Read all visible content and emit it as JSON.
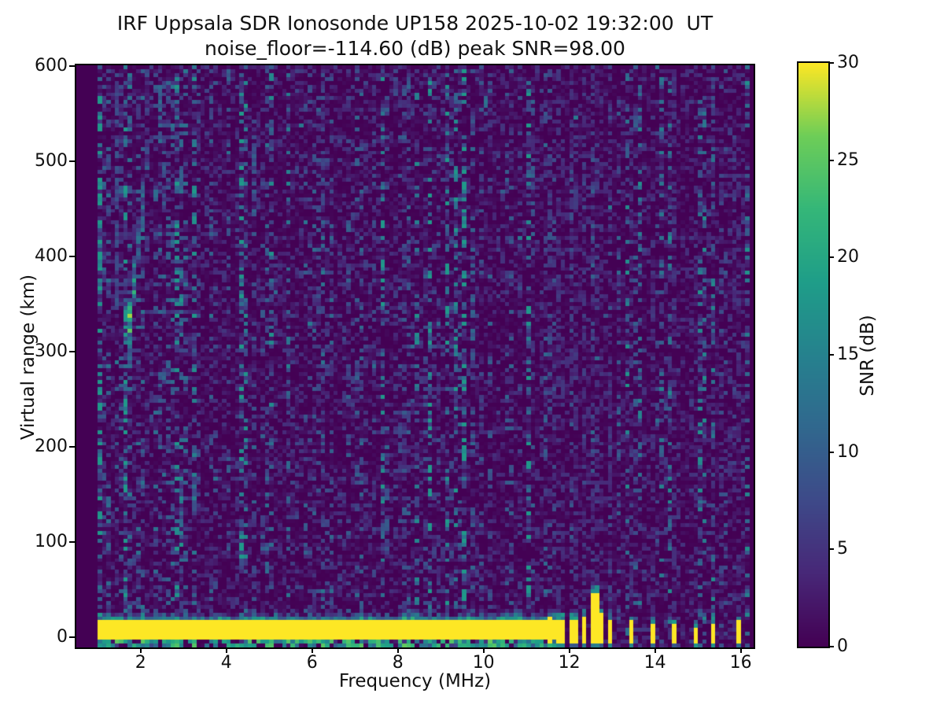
{
  "chart_data": {
    "type": "heatmap",
    "title": "IRF Uppsala SDR Ionosonde UP158 2025-10-02 19:32:00  UT",
    "subtitle": "noise_floor=-114.60 (dB) peak SNR=98.00",
    "xlabel": "Frequency (MHz)",
    "ylabel": "Virtual range (km)",
    "colorbar_label": "SNR (dB)",
    "noise_floor_db": -114.6,
    "peak_snr_db": 98.0,
    "xlim": [
      0.5,
      16.3
    ],
    "ylim": [
      -11,
      601
    ],
    "clim": [
      0,
      30
    ],
    "x_ticks": [
      2,
      4,
      6,
      8,
      10,
      12,
      14,
      16
    ],
    "y_ticks": [
      0,
      100,
      200,
      300,
      400,
      500,
      600
    ],
    "colorbar_ticks": [
      0,
      5,
      10,
      15,
      20,
      25,
      30
    ],
    "colormap": {
      "name": "viridis",
      "stops": [
        [
          0.0,
          "#440154"
        ],
        [
          0.125,
          "#482878"
        ],
        [
          0.25,
          "#3e4a89"
        ],
        [
          0.375,
          "#31688e"
        ],
        [
          0.5,
          "#26828e"
        ],
        [
          0.625,
          "#1f9e89"
        ],
        [
          0.75,
          "#35b779"
        ],
        [
          0.875,
          "#6ece58"
        ],
        [
          1.0,
          "#fde725"
        ]
      ]
    },
    "data_extent": {
      "freq_mhz": [
        1.0,
        16.2
      ],
      "range_km": [
        -11,
        601
      ]
    },
    "grid": {
      "n_freq_bins": 152,
      "n_range_bins": 150,
      "seed": 7
    },
    "features": {
      "background_noise_db": [
        0,
        4
      ],
      "ground_echo_band": {
        "freq_mhz": [
          0.97,
          11.62
        ],
        "core_range_km": [
          -4,
          17
        ],
        "core_snr_db": 30,
        "fringe_top_km": 24,
        "bumps": [
          {
            "f": 2.2,
            "top": 26
          },
          {
            "f": 3.2,
            "top": 27
          },
          {
            "f": 5.5,
            "top": 26
          },
          {
            "f": 6.35,
            "top": 27
          },
          {
            "f": 8.3,
            "top": 33
          },
          {
            "f": 9.6,
            "top": 27
          },
          {
            "f": 10.65,
            "top": 30
          },
          {
            "f": 11.3,
            "top": 27
          }
        ]
      },
      "interference_stripes": [
        {
          "f": 11.55,
          "top_km": 20
        },
        {
          "f": 11.71,
          "top_km": 18
        },
        {
          "f": 11.86,
          "top_km": 18
        },
        {
          "f": 12.01,
          "top_km": 18
        },
        {
          "f": 12.16,
          "top_km": 19
        },
        {
          "f": 12.31,
          "top_km": 21
        },
        {
          "f": 12.53,
          "top_km": 46,
          "width_bins": 2
        },
        {
          "f": 12.73,
          "top_km": 24
        },
        {
          "f": 12.92,
          "top_km": 18
        },
        {
          "f": 13.41,
          "top_km": 16
        },
        {
          "f": 13.91,
          "top_km": 14
        },
        {
          "f": 14.42,
          "top_km": 12
        },
        {
          "f": 14.9,
          "top_km": 10
        },
        {
          "f": 15.39,
          "top_km": 14
        },
        {
          "f": 15.92,
          "top_km": 16
        }
      ],
      "echo_trace": [
        {
          "f": 1.7,
          "km": 295,
          "snr": 14
        },
        {
          "f": 1.73,
          "km": 308,
          "snr": 20
        },
        {
          "f": 1.75,
          "km": 322,
          "snr": 26
        },
        {
          "f": 1.77,
          "km": 336,
          "snr": 27
        },
        {
          "f": 1.79,
          "km": 348,
          "snr": 25
        },
        {
          "f": 1.82,
          "km": 362,
          "snr": 21
        },
        {
          "f": 1.85,
          "km": 376,
          "snr": 18
        },
        {
          "f": 1.89,
          "km": 390,
          "snr": 15
        },
        {
          "f": 1.93,
          "km": 404,
          "snr": 13
        },
        {
          "f": 1.98,
          "km": 418,
          "snr": 12
        },
        {
          "f": 2.03,
          "km": 434,
          "snr": 14
        },
        {
          "f": 2.06,
          "km": 452,
          "snr": 13
        },
        {
          "f": 2.09,
          "km": 472,
          "snr": 12
        },
        {
          "f": 2.12,
          "km": 492,
          "snr": 11
        },
        {
          "f": 2.15,
          "km": 510,
          "snr": 10
        }
      ],
      "noise_patches": [
        {
          "f": 1.42,
          "km": [
            350,
            590
          ],
          "snr": 8
        },
        {
          "f": 2.45,
          "km": [
            520,
            585
          ],
          "snr": 11
        },
        {
          "f": 2.95,
          "km": [
            470,
            495
          ],
          "snr": 12
        },
        {
          "f": 4.65,
          "km": [
            450,
            530
          ],
          "snr": 10
        },
        {
          "f": 4.8,
          "km": [
            88,
            110
          ],
          "snr": 10
        },
        {
          "f": 8.05,
          "km": [
            175,
            240
          ],
          "snr": 9
        },
        {
          "f": 10.0,
          "km": [
            548,
            568
          ],
          "snr": 12
        }
      ]
    }
  }
}
